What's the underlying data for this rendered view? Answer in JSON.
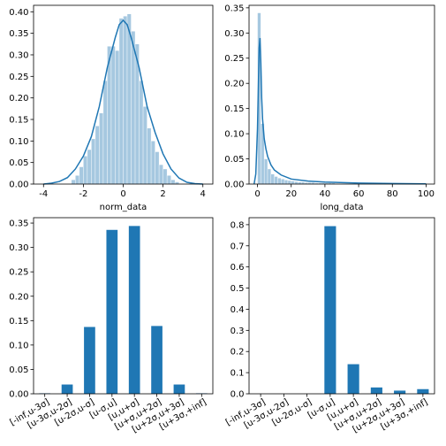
{
  "colors": {
    "hist_fill": "#a6c8e0",
    "kde_line": "#1f77b4",
    "bar_fill": "#1f77b4",
    "axes": "#000000"
  },
  "chart_data": [
    {
      "type": "histogram",
      "xlabel": "norm_data",
      "xlim": [
        -4.5,
        4.5
      ],
      "ylim": [
        0,
        0.415
      ],
      "xticks": [
        -4,
        -2,
        0,
        2,
        4
      ],
      "yticks": [
        0.0,
        0.05,
        0.1,
        0.15,
        0.2,
        0.25,
        0.3,
        0.35,
        0.4
      ],
      "yticklabels": [
        "0.00",
        "0.05",
        "0.10",
        "0.15",
        "0.20",
        "0.25",
        "0.30",
        "0.35",
        "0.40"
      ],
      "bin_edges": [
        -2.6,
        -2.4,
        -2.2,
        -2.0,
        -1.8,
        -1.6,
        -1.4,
        -1.2,
        -1.0,
        -0.8,
        -0.6,
        -0.4,
        -0.2,
        0.0,
        0.2,
        0.4,
        0.6,
        0.8,
        1.0,
        1.2,
        1.4,
        1.6,
        1.8,
        2.0,
        2.2,
        2.4,
        2.6,
        2.8
      ],
      "bin_heights": [
        0.01,
        0.02,
        0.04,
        0.065,
        0.08,
        0.105,
        0.135,
        0.165,
        0.24,
        0.32,
        0.32,
        0.31,
        0.385,
        0.39,
        0.395,
        0.355,
        0.325,
        0.24,
        0.18,
        0.13,
        0.1,
        0.075,
        0.045,
        0.035,
        0.02,
        0.01,
        0.005
      ],
      "kde": {
        "x": [
          -4.0,
          -3.6,
          -3.2,
          -2.8,
          -2.4,
          -2.0,
          -1.6,
          -1.2,
          -0.8,
          -0.4,
          -0.2,
          0.0,
          0.2,
          0.4,
          0.8,
          1.2,
          1.6,
          2.0,
          2.4,
          2.8,
          3.2,
          3.6,
          4.0
        ],
        "y": [
          0.0,
          0.002,
          0.006,
          0.015,
          0.035,
          0.065,
          0.11,
          0.18,
          0.27,
          0.34,
          0.37,
          0.38,
          0.37,
          0.34,
          0.27,
          0.18,
          0.12,
          0.07,
          0.035,
          0.014,
          0.004,
          0.001,
          0.0
        ]
      }
    },
    {
      "type": "histogram",
      "xlabel": "long_data",
      "xlim": [
        -5,
        105
      ],
      "ylim": [
        0,
        0.355
      ],
      "xticks": [
        0,
        20,
        40,
        60,
        80,
        100
      ],
      "yticks": [
        0.0,
        0.05,
        0.1,
        0.15,
        0.2,
        0.25,
        0.3,
        0.35
      ],
      "yticklabels": [
        "0.00",
        "0.05",
        "0.10",
        "0.15",
        "0.20",
        "0.25",
        "0.30",
        "0.35"
      ],
      "bin_edges": [
        0,
        2,
        4,
        6,
        8,
        10,
        12,
        14,
        16,
        18,
        20,
        22,
        24,
        26,
        28,
        30,
        32,
        34,
        36,
        38,
        40,
        42,
        44,
        46,
        48,
        50,
        52,
        54,
        56,
        58,
        60,
        62,
        64,
        66,
        68,
        70,
        72,
        74,
        76,
        78,
        80,
        82,
        84,
        86,
        88,
        90,
        92,
        94,
        96,
        98,
        100
      ],
      "bin_heights": [
        0.34,
        0.12,
        0.05,
        0.03,
        0.02,
        0.015,
        0.012,
        0.01,
        0.008,
        0.007,
        0.006,
        0.005,
        0.004,
        0.004,
        0.003,
        0.003,
        0.003,
        0.002,
        0.002,
        0.002,
        0.002,
        0.002,
        0.002,
        0.001,
        0.001,
        0.001,
        0.001,
        0.001,
        0.001,
        0.001,
        0.001,
        0.001,
        0.001,
        0.001,
        0.001,
        0.001,
        0.001,
        0.001,
        0.001,
        0.001,
        0.001,
        0.001,
        0.001,
        0.001,
        0.001,
        0.001,
        0.001,
        0.001,
        0.001,
        0.001
      ],
      "kde": {
        "x": [
          -2,
          -1,
          0,
          1,
          1.5,
          2,
          2.5,
          3,
          4,
          5,
          6,
          8,
          10,
          14,
          20,
          30,
          40,
          60,
          80,
          100
        ],
        "y": [
          0.0,
          0.02,
          0.11,
          0.27,
          0.29,
          0.24,
          0.17,
          0.13,
          0.09,
          0.07,
          0.055,
          0.038,
          0.028,
          0.018,
          0.01,
          0.006,
          0.004,
          0.002,
          0.001,
          0.0005
        ]
      }
    },
    {
      "type": "bar",
      "categories": [
        "[-inf,u-3σ]",
        "[u-3σ,u-2σ]",
        "[u-2σ,u-σ]",
        "[u-σ,u]",
        "[u,u+σ]",
        "[u+σ,u+2σ]",
        "[u+2σ,u+3σ]",
        "[u+3σ,+inf]"
      ],
      "values": [
        0.001,
        0.019,
        0.137,
        0.336,
        0.344,
        0.139,
        0.019,
        0.001
      ],
      "ylim": [
        0,
        0.361
      ],
      "yticks": [
        0.0,
        0.05,
        0.1,
        0.15,
        0.2,
        0.25,
        0.3,
        0.35
      ],
      "yticklabels": [
        "0.00",
        "0.05",
        "0.10",
        "0.15",
        "0.20",
        "0.25",
        "0.30",
        "0.35"
      ]
    },
    {
      "type": "bar",
      "categories": [
        "[-inf,u-3σ]",
        "[u-3σ,u-2σ]",
        "[u-2σ,u-σ]",
        "[u-σ,u]",
        "[u,u+σ]",
        "[u+σ,u+2σ]",
        "[u+2σ,u+3σ]",
        "[u+3σ,+inf]"
      ],
      "values": [
        0.0,
        0.0,
        0.0,
        0.793,
        0.14,
        0.03,
        0.015,
        0.022
      ],
      "ylim": [
        0,
        0.833
      ],
      "yticks": [
        0.0,
        0.1,
        0.2,
        0.3,
        0.4,
        0.5,
        0.6,
        0.7,
        0.8
      ],
      "yticklabels": [
        "0.0",
        "0.1",
        "0.2",
        "0.3",
        "0.4",
        "0.5",
        "0.6",
        "0.7",
        "0.8"
      ]
    }
  ]
}
